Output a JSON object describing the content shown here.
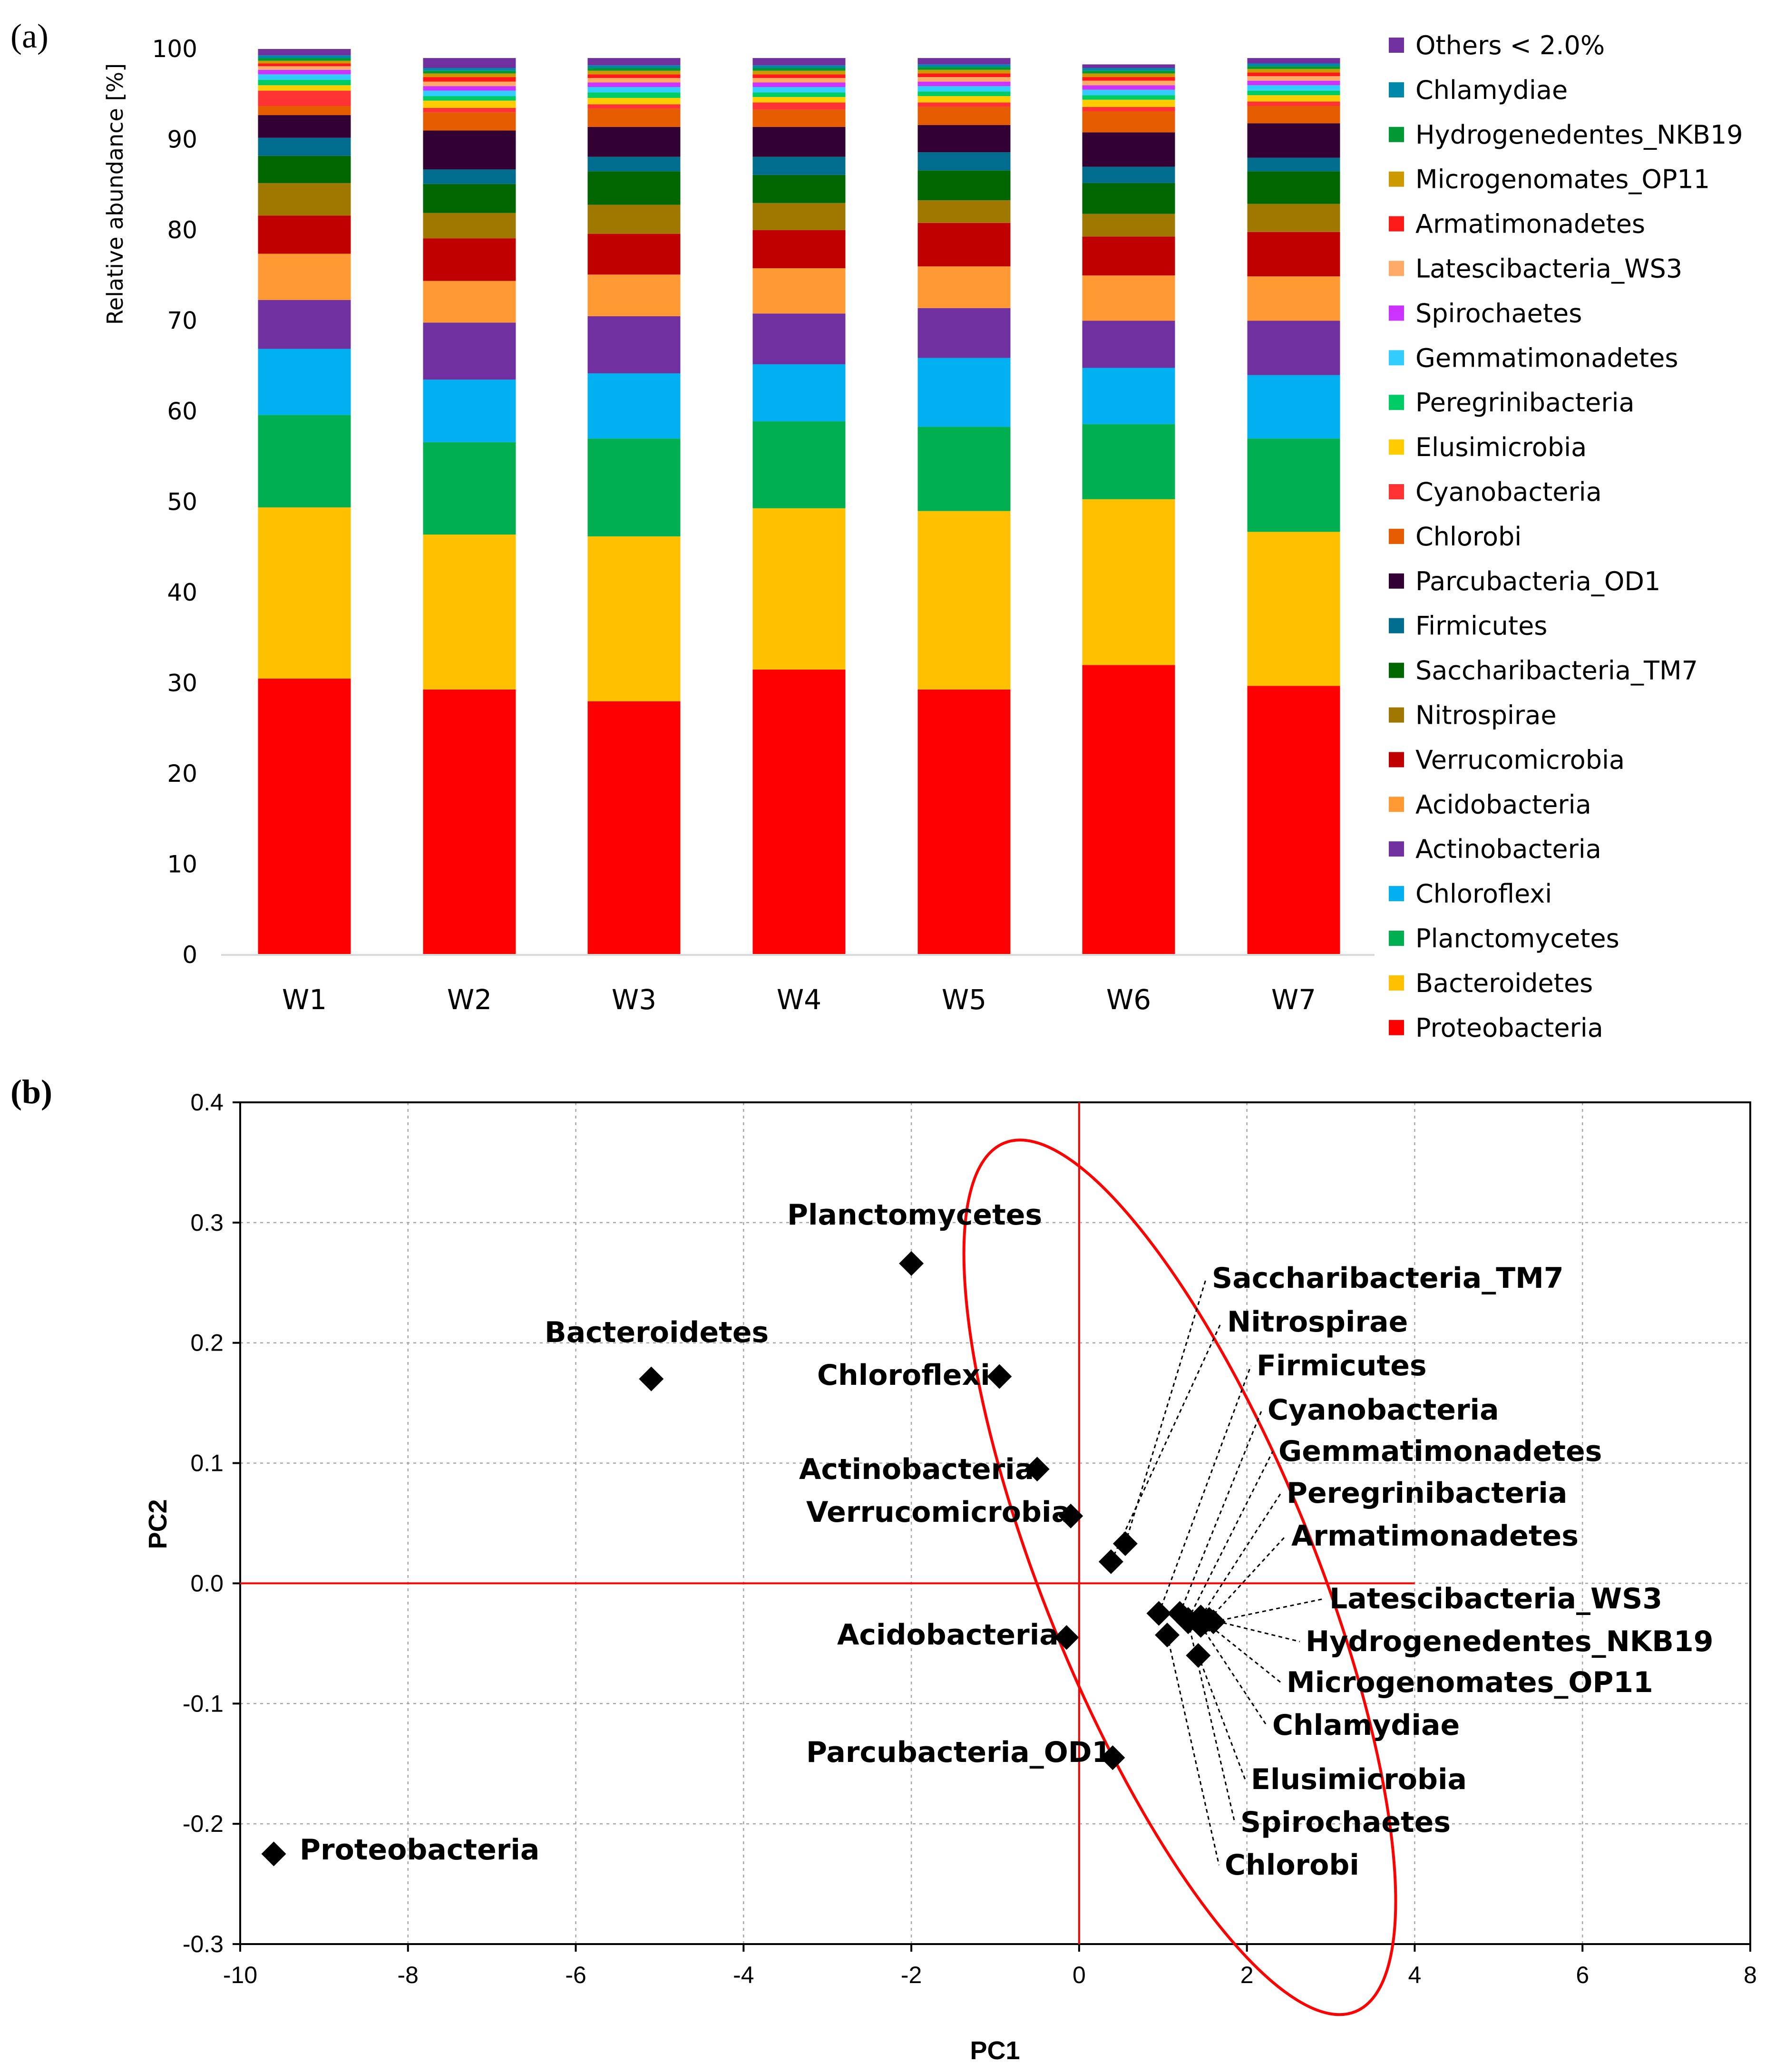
{
  "panel_labels": {
    "a": "(a)",
    "b": "(b)"
  },
  "chart_data": [
    {
      "type": "bar",
      "stacked": true,
      "title": "",
      "ylabel": "Relative abundance [%]",
      "xlabel": "",
      "ylim": [
        0,
        100
      ],
      "yticks": [
        0,
        10,
        20,
        30,
        40,
        50,
        60,
        70,
        80,
        90,
        100
      ],
      "categories": [
        "W1",
        "W2",
        "W3",
        "W4",
        "W5",
        "W6",
        "W7"
      ],
      "legend_position": "right",
      "series": [
        {
          "name": "Proteobacteria",
          "color": "#ff0000",
          "values": [
            30.5,
            29.3,
            28.0,
            31.5,
            29.3,
            32.0,
            29.7
          ]
        },
        {
          "name": "Bacteroidetes",
          "color": "#ffc000",
          "values": [
            18.9,
            17.1,
            18.2,
            17.8,
            19.7,
            18.3,
            17.0
          ]
        },
        {
          "name": "Planctomycetes",
          "color": "#00b050",
          "values": [
            10.2,
            10.2,
            10.8,
            9.6,
            9.3,
            8.3,
            10.3
          ]
        },
        {
          "name": "Chloroflexi",
          "color": "#00b0f0",
          "values": [
            7.3,
            6.9,
            7.2,
            6.3,
            7.6,
            6.2,
            7.0
          ]
        },
        {
          "name": "Actinobacteria",
          "color": "#7030a0",
          "values": [
            5.4,
            6.3,
            6.3,
            5.6,
            5.5,
            5.2,
            6.0
          ]
        },
        {
          "name": "Acidobacteria",
          "color": "#ff9933",
          "values": [
            5.1,
            4.6,
            4.6,
            5.0,
            4.6,
            5.0,
            4.9
          ]
        },
        {
          "name": "Verrucomicrobia",
          "color": "#c00000",
          "values": [
            4.2,
            4.7,
            4.5,
            4.2,
            4.8,
            4.3,
            4.9
          ]
        },
        {
          "name": "Nitrospirae",
          "color": "#a07800",
          "values": [
            3.6,
            2.8,
            3.2,
            3.0,
            2.5,
            2.5,
            3.1
          ]
        },
        {
          "name": "Saccharibacteria_TM7",
          "color": "#006600",
          "values": [
            3.0,
            3.2,
            3.7,
            3.1,
            3.3,
            3.4,
            3.6
          ]
        },
        {
          "name": "Firmicutes",
          "color": "#006d8f",
          "values": [
            2.0,
            1.6,
            1.6,
            2.0,
            2.0,
            1.8,
            1.5
          ]
        },
        {
          "name": "Parcubacteria_OD1",
          "color": "#330033",
          "values": [
            2.5,
            4.3,
            3.3,
            3.3,
            3.0,
            3.8,
            3.8
          ]
        },
        {
          "name": "Chlorobi",
          "color": "#e65c00",
          "values": [
            1.0,
            2.0,
            2.0,
            1.9,
            2.0,
            2.3,
            1.9
          ]
        },
        {
          "name": "Cyanobacteria",
          "color": "#ff3333",
          "values": [
            1.7,
            0.5,
            0.5,
            0.8,
            0.5,
            0.5,
            0.5
          ]
        },
        {
          "name": "Elusimicrobia",
          "color": "#ffcc00",
          "values": [
            0.6,
            0.8,
            0.7,
            0.6,
            0.7,
            0.8,
            0.7
          ]
        },
        {
          "name": "Peregrinibacteria",
          "color": "#00cc66",
          "values": [
            0.6,
            0.5,
            0.6,
            0.5,
            0.5,
            0.5,
            0.5
          ]
        },
        {
          "name": "Gemmatimonadetes",
          "color": "#33ccff",
          "values": [
            0.6,
            0.6,
            0.6,
            0.6,
            0.6,
            0.6,
            0.6
          ]
        },
        {
          "name": "Spirochaetes",
          "color": "#cc33ff",
          "values": [
            0.5,
            0.5,
            0.5,
            0.5,
            0.5,
            0.5,
            0.5
          ]
        },
        {
          "name": "Latescibacteria_WS3",
          "color": "#ffaa66",
          "values": [
            0.4,
            0.5,
            0.5,
            0.5,
            0.5,
            0.5,
            0.5
          ]
        },
        {
          "name": "Armatimonadetes",
          "color": "#ff1a1a",
          "values": [
            0.3,
            0.5,
            0.4,
            0.4,
            0.4,
            0.4,
            0.4
          ]
        },
        {
          "name": "Microgenomates_OP11",
          "color": "#cc9900",
          "values": [
            0.3,
            0.4,
            0.4,
            0.4,
            0.4,
            0.4,
            0.4
          ]
        },
        {
          "name": "Hydrogenedentes_NKB19",
          "color": "#009933",
          "values": [
            0.3,
            0.3,
            0.3,
            0.3,
            0.3,
            0.3,
            0.3
          ]
        },
        {
          "name": "Chlamydiae",
          "color": "#0088aa",
          "values": [
            0.3,
            0.3,
            0.3,
            0.3,
            0.3,
            0.3,
            0.3
          ]
        },
        {
          "name": "Others < 2.0%",
          "color": "#7030a0",
          "values": [
            0.7,
            1.1,
            0.8,
            0.8,
            0.7,
            0.4,
            0.6
          ]
        }
      ]
    },
    {
      "type": "scatter",
      "title": "",
      "xlabel": "PC1",
      "ylabel": "PC2",
      "xlim": [
        -10,
        8
      ],
      "ylim": [
        -0.3,
        0.4
      ],
      "xticks": [
        -10,
        -8,
        -6,
        -4,
        -2,
        0,
        2,
        4,
        6,
        8
      ],
      "yticks": [
        -0.3,
        -0.2,
        -0.1,
        0.0,
        0.1,
        0.2,
        0.3,
        0.4
      ],
      "ytick_labels": [
        "-0.3",
        "-0.2",
        "-0.1",
        "0.0",
        "0.1",
        "0.2",
        "0.3",
        "0.4"
      ],
      "grid": true,
      "reference_lines": {
        "x": 0,
        "y": 0,
        "x_max": 4,
        "color": "#ff0000"
      },
      "ellipse": {
        "cx": 1.2,
        "cy": 0.005,
        "semi_major": 0.18,
        "semi_minor": 1.55,
        "color": "#ff0000"
      },
      "points": [
        {
          "label": "Proteobacteria",
          "x": -9.6,
          "y": -0.225
        },
        {
          "label": "Bacteroidetes",
          "x": -5.1,
          "y": 0.17
        },
        {
          "label": "Planctomycetes",
          "x": -2.0,
          "y": 0.266
        },
        {
          "label": "Chloroflexi",
          "x": -0.95,
          "y": 0.172
        },
        {
          "label": "Actinobacteria",
          "x": -0.5,
          "y": 0.095
        },
        {
          "label": "Verrucomicrobia",
          "x": -0.1,
          "y": 0.056
        },
        {
          "label": "Acidobacteria",
          "x": -0.15,
          "y": -0.045
        },
        {
          "label": "Parcubacteria_OD1",
          "x": 0.4,
          "y": -0.145
        },
        {
          "label": "Saccharibacteria_TM7",
          "x": 0.55,
          "y": 0.033
        },
        {
          "label": "Nitrospirae",
          "x": 0.38,
          "y": 0.018
        },
        {
          "label": "Firmicutes",
          "x": 0.95,
          "y": -0.025
        },
        {
          "label": "Cyanobacteria",
          "x": 1.2,
          "y": -0.025
        },
        {
          "label": "Gemmatimonadetes",
          "x": 1.3,
          "y": -0.03
        },
        {
          "label": "Peregrinibacteria",
          "x": 1.45,
          "y": -0.028
        },
        {
          "label": "Armatimonadetes",
          "x": 1.55,
          "y": -0.03
        },
        {
          "label": "Latescibacteria_WS3",
          "x": 1.6,
          "y": -0.032
        },
        {
          "label": "Hydrogenedentes_NKB19",
          "x": 1.55,
          "y": -0.03
        },
        {
          "label": "Microgenomates_OP11",
          "x": 1.5,
          "y": -0.032
        },
        {
          "label": "Chlamydiae",
          "x": 1.45,
          "y": -0.035
        },
        {
          "label": "Elusimicrobia",
          "x": 1.42,
          "y": -0.06
        },
        {
          "label": "Spirochaetes",
          "x": 1.3,
          "y": -0.032
        },
        {
          "label": "Chlorobi",
          "x": 1.05,
          "y": -0.043
        }
      ]
    }
  ]
}
